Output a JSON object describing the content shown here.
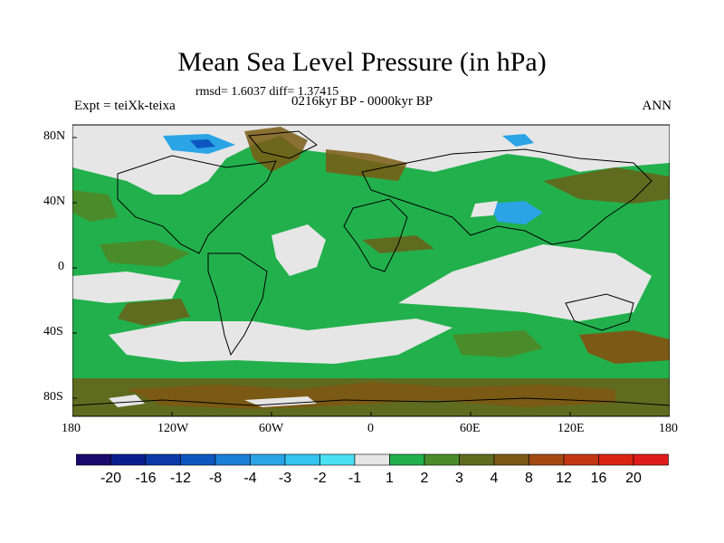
{
  "title": "Mean Sea Level Pressure (in hPa)",
  "stats": "rmsd= 1.6037 diff= 1.37415",
  "expt_label": "Expt = teiXk-teixa",
  "period": "0216kyr BP - 0000kyr BP",
  "season": "ANN",
  "lat_ticks": [
    "80N",
    "40N",
    "0",
    "40S",
    "80S"
  ],
  "lon_ticks": [
    "180",
    "120W",
    "60W",
    "0",
    "60E",
    "120E",
    "180"
  ],
  "legend": {
    "labels": [
      "-20",
      "-16",
      "-12",
      "-8",
      "-4",
      "-3",
      "-2",
      "-1",
      "1",
      "2",
      "3",
      "4",
      "8",
      "12",
      "16",
      "20"
    ],
    "colors": [
      "#1a0a6e",
      "#0a1f8f",
      "#0b3aa8",
      "#0d56c0",
      "#1a7fd6",
      "#2ba4e6",
      "#35c4ef",
      "#49e0f2",
      "#e6e6e6",
      "#22b04c",
      "#4a8c2a",
      "#5f6b1f",
      "#7a5a14",
      "#a24a12",
      "#c23712",
      "#d82612",
      "#e01b1b"
    ]
  },
  "colors": {
    "positive_small": "#e6e6e6",
    "green_2": "#22b04c",
    "green_3": "#4a8c2a",
    "olive_4": "#5f6b1f",
    "brown_8": "#7a5a14",
    "blue_neg": "#2ba4e6"
  }
}
